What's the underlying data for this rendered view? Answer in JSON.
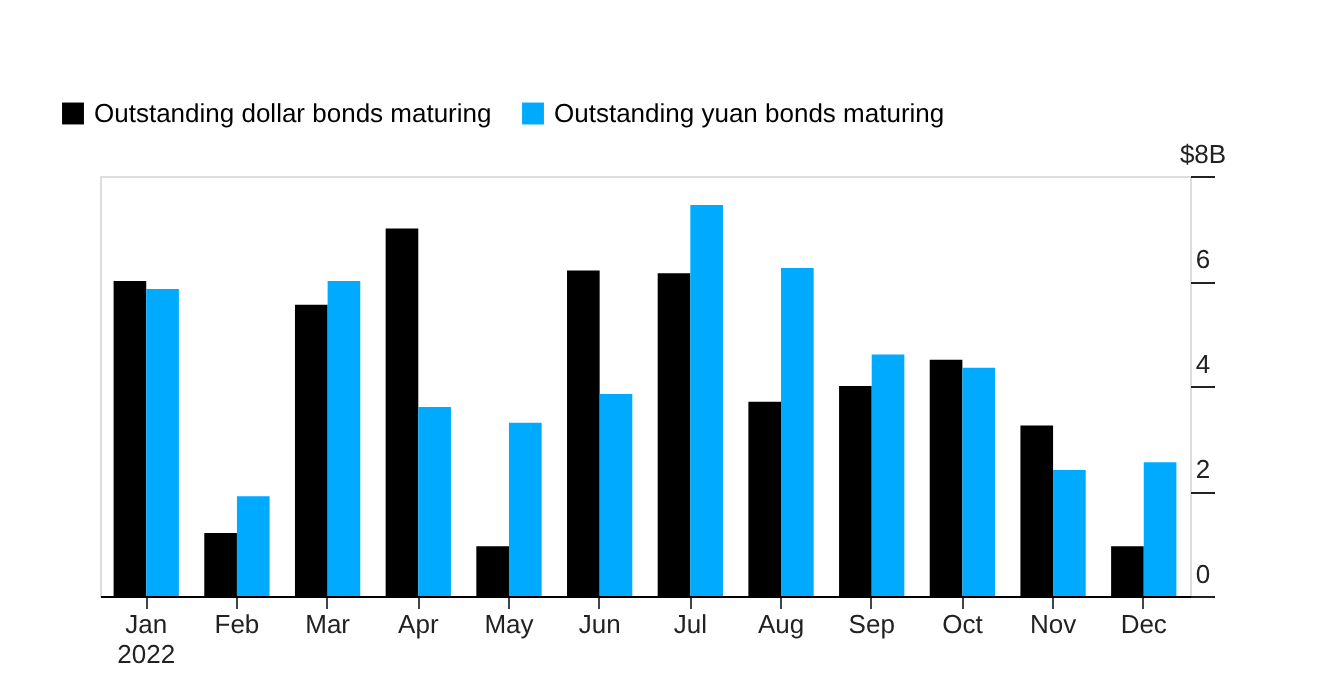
{
  "chart_data": {
    "type": "bar",
    "categories": [
      "Jan\n2022",
      "Feb",
      "Mar",
      "Apr",
      "May",
      "Jun",
      "Jul",
      "Aug",
      "Sep",
      "Oct",
      "Nov",
      "Dec"
    ],
    "series": [
      {
        "name": "Outstanding dollar bonds maturing",
        "color": "#000000",
        "values": [
          6.0,
          1.2,
          5.55,
          7.0,
          0.95,
          6.2,
          6.15,
          3.7,
          4.0,
          4.5,
          3.25,
          0.95
        ]
      },
      {
        "name": "Outstanding yuan bonds maturing",
        "color": "#00aaff",
        "values": [
          5.85,
          1.9,
          6.0,
          3.6,
          3.3,
          3.85,
          7.45,
          6.25,
          4.6,
          4.35,
          2.4,
          2.55
        ]
      }
    ],
    "ylim": [
      0,
      8
    ],
    "yticks": [
      0,
      2,
      4,
      6,
      {
        "value": 8,
        "label": "$8B"
      }
    ],
    "grid": false,
    "legend": "top left"
  }
}
